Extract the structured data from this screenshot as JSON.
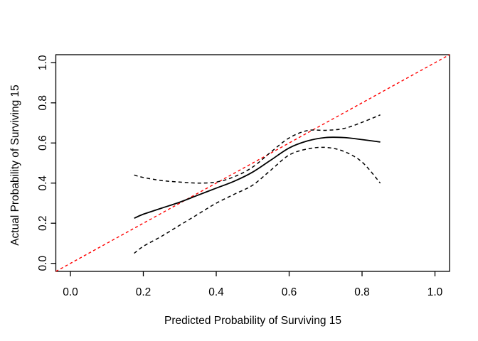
{
  "chart_data": {
    "type": "line",
    "title": "",
    "xlabel": "Predicted Probability of Surviving 15",
    "ylabel": "Actual Probability of Surviving 15",
    "xlim": [
      0,
      1
    ],
    "ylim": [
      0,
      1
    ],
    "axis_pad_frac": 0.04,
    "grid": "off",
    "legend": "none",
    "x_ticks": [
      0.0,
      0.2,
      0.4,
      0.6,
      0.8,
      1.0
    ],
    "x_tick_labels": [
      "0.0",
      "0.2",
      "0.4",
      "0.6",
      "0.8",
      "1.0"
    ],
    "y_ticks": [
      0.0,
      0.2,
      0.4,
      0.6,
      0.8,
      1.0
    ],
    "y_tick_labels": [
      "0.0",
      "0.2",
      "0.4",
      "0.6",
      "0.8",
      "1.0"
    ],
    "colors": {
      "ideal_line": "#ff0000",
      "curves": "#000000",
      "background": "#ffffff"
    },
    "series": [
      {
        "name": "ideal-reference-line",
        "style": "dashed",
        "color": "#ff0000",
        "smooth": false,
        "width": 1.4,
        "dash": "4,3.5",
        "x": [
          -0.04,
          1.04
        ],
        "y": [
          -0.04,
          1.04
        ]
      },
      {
        "name": "calibration-curve",
        "style": "solid",
        "color": "#000000",
        "smooth": true,
        "width": 1.8,
        "dash": "",
        "x": [
          0.175,
          0.2,
          0.25,
          0.3,
          0.35,
          0.4,
          0.45,
          0.5,
          0.55,
          0.6,
          0.65,
          0.7,
          0.75,
          0.8,
          0.85
        ],
        "y": [
          0.225,
          0.245,
          0.275,
          0.305,
          0.34,
          0.375,
          0.41,
          0.455,
          0.515,
          0.575,
          0.61,
          0.627,
          0.627,
          0.617,
          0.605
        ]
      },
      {
        "name": "upper-confidence-band",
        "style": "dashed",
        "color": "#000000",
        "smooth": true,
        "width": 1.5,
        "dash": "5,4",
        "x": [
          0.175,
          0.2,
          0.25,
          0.3,
          0.35,
          0.4,
          0.45,
          0.5,
          0.55,
          0.6,
          0.65,
          0.7,
          0.75,
          0.8,
          0.85
        ],
        "y": [
          0.44,
          0.428,
          0.413,
          0.405,
          0.4,
          0.405,
          0.432,
          0.48,
          0.555,
          0.625,
          0.662,
          0.663,
          0.672,
          0.703,
          0.74
        ]
      },
      {
        "name": "lower-confidence-band",
        "style": "dashed",
        "color": "#000000",
        "smooth": true,
        "width": 1.5,
        "dash": "5,4",
        "x": [
          0.175,
          0.2,
          0.25,
          0.3,
          0.35,
          0.4,
          0.45,
          0.5,
          0.55,
          0.6,
          0.65,
          0.7,
          0.75,
          0.8,
          0.85
        ],
        "y": [
          0.05,
          0.085,
          0.135,
          0.19,
          0.245,
          0.3,
          0.345,
          0.39,
          0.465,
          0.54,
          0.57,
          0.578,
          0.558,
          0.505,
          0.4
        ]
      }
    ]
  }
}
